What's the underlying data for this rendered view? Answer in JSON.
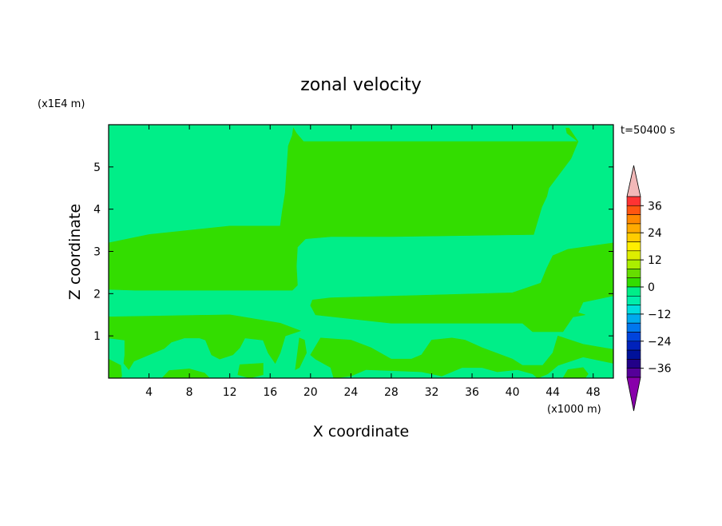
{
  "chart_data": {
    "type": "heatmap",
    "title": "zonal velocity",
    "xlabel": "X coordinate",
    "ylabel": "Z coordinate",
    "x_unit": "(x1000 m)",
    "y_unit": "(x1E4 m)",
    "time_label": "t=50400 s",
    "xlim": [
      0,
      50
    ],
    "ylim": [
      0,
      6
    ],
    "x_ticks": [
      4,
      8,
      12,
      16,
      20,
      24,
      28,
      32,
      36,
      40,
      44,
      48
    ],
    "y_ticks": [
      1,
      2,
      3,
      4,
      5
    ],
    "x_tick_labels": [
      "4",
      "8",
      "12",
      "16",
      "20",
      "24",
      "28",
      "32",
      "36",
      "40",
      "44",
      "48"
    ],
    "y_tick_labels": [
      "1",
      "2",
      "3",
      "4",
      "5"
    ],
    "regions": [
      {
        "level": "0 to 3",
        "color": "#33dd00",
        "points": [
          [
            18.3,
            5.92
          ],
          [
            18.6,
            5.8
          ],
          [
            19.3,
            5.6
          ],
          [
            46.5,
            5.6
          ],
          [
            45.8,
            5.2
          ],
          [
            43.6,
            4.5
          ],
          [
            43.4,
            4.3
          ],
          [
            42.9,
            4.05
          ],
          [
            42.1,
            3.4
          ],
          [
            28,
            3.35
          ],
          [
            22,
            3.35
          ],
          [
            19.5,
            3.3
          ],
          [
            18.7,
            3.1
          ],
          [
            18.6,
            2.65
          ],
          [
            18.7,
            2.2
          ],
          [
            18.2,
            2.08
          ],
          [
            2.6,
            2.08
          ],
          [
            0,
            2.1
          ],
          [
            0,
            3.2
          ],
          [
            4,
            3.4
          ],
          [
            12,
            3.6
          ],
          [
            17,
            3.6
          ],
          [
            17.2,
            3.95
          ],
          [
            17.5,
            4.4
          ],
          [
            17.6,
            4.8
          ],
          [
            17.8,
            5.5
          ],
          [
            18.2,
            5.75
          ]
        ]
      },
      {
        "level": "0 to 3",
        "color": "#33dd00",
        "points": [
          [
            45.3,
            5.92
          ],
          [
            45.4,
            5.8
          ],
          [
            46.5,
            5.6
          ],
          [
            45.6,
            5.92
          ]
        ]
      },
      {
        "level": "0 to 3",
        "color": "#33dd00",
        "points": [
          [
            20,
            1.72
          ],
          [
            20.2,
            1.85
          ],
          [
            22,
            1.9
          ],
          [
            40,
            2.02
          ],
          [
            42.8,
            2.25
          ],
          [
            43.4,
            2.6
          ],
          [
            44,
            2.9
          ],
          [
            45.5,
            3.05
          ],
          [
            50,
            3.2
          ],
          [
            50,
            1.95
          ],
          [
            47,
            1.8
          ],
          [
            46.5,
            1.55
          ],
          [
            47.2,
            1.5
          ],
          [
            46,
            1.45
          ],
          [
            45,
            1.1
          ],
          [
            42,
            1.1
          ],
          [
            41,
            1.3
          ],
          [
            28,
            1.3
          ],
          [
            20.5,
            1.5
          ]
        ]
      },
      {
        "level": "0 to 3",
        "color": "#33dd00",
        "points": [
          [
            0,
            1.45
          ],
          [
            12,
            1.5
          ],
          [
            17,
            1.3
          ],
          [
            19,
            1.12
          ],
          [
            17.5,
            1.0
          ],
          [
            17,
            0.6
          ],
          [
            16.5,
            0.35
          ],
          [
            15.8,
            0.6
          ],
          [
            15.3,
            0.9
          ],
          [
            13.5,
            0.95
          ],
          [
            13,
            0.72
          ],
          [
            12.3,
            0.55
          ],
          [
            11,
            0.45
          ],
          [
            10.2,
            0.55
          ],
          [
            9.6,
            0.9
          ],
          [
            9,
            0.95
          ],
          [
            7.5,
            0.95
          ],
          [
            6.2,
            0.85
          ],
          [
            5.5,
            0.7
          ],
          [
            4,
            0.55
          ],
          [
            2.5,
            0.4
          ],
          [
            2,
            0.2
          ],
          [
            1.5,
            0.35
          ],
          [
            1.6,
            0.55
          ],
          [
            1.6,
            0.9
          ],
          [
            0,
            0.95
          ]
        ]
      },
      {
        "level": "0 to 3",
        "color": "#33dd00",
        "points": [
          [
            18.5,
            0.2
          ],
          [
            18.9,
            0.95
          ],
          [
            19.4,
            0.9
          ],
          [
            19.6,
            0.6
          ],
          [
            18.9,
            0.25
          ]
        ]
      },
      {
        "level": "0 to 3",
        "color": "#33dd00",
        "points": [
          [
            20,
            0.55
          ],
          [
            21,
            0.95
          ],
          [
            24,
            0.9
          ],
          [
            26,
            0.72
          ],
          [
            28,
            0.45
          ],
          [
            30,
            0.45
          ],
          [
            31,
            0.55
          ],
          [
            32,
            0.9
          ],
          [
            34,
            0.95
          ],
          [
            35.3,
            0.9
          ],
          [
            37,
            0.72
          ],
          [
            40,
            0.45
          ],
          [
            41,
            0.3
          ],
          [
            43,
            0.3
          ],
          [
            44,
            0.6
          ],
          [
            44.5,
            1.0
          ],
          [
            47,
            0.8
          ],
          [
            50,
            0.68
          ],
          [
            50,
            0.35
          ],
          [
            47,
            0.5
          ],
          [
            44.5,
            0.3
          ],
          [
            43.5,
            0.1
          ],
          [
            42.5,
            0
          ],
          [
            42,
            0.1
          ],
          [
            40.5,
            0.2
          ],
          [
            38.5,
            0.15
          ],
          [
            37,
            0.25
          ],
          [
            35,
            0.25
          ],
          [
            33,
            0.05
          ],
          [
            31,
            0.15
          ],
          [
            25.5,
            0.2
          ],
          [
            24,
            0.05
          ],
          [
            22.3,
            0
          ],
          [
            22,
            0.25
          ],
          [
            20.5,
            0.45
          ]
        ]
      },
      {
        "level": "0 to 3",
        "color": "#33dd00",
        "points": [
          [
            12.8,
            0.08
          ],
          [
            13,
            0.32
          ],
          [
            15.3,
            0.35
          ],
          [
            15.3,
            0.08
          ],
          [
            14,
            0
          ]
        ]
      },
      {
        "level": "0 to 3",
        "color": "#33dd00",
        "points": [
          [
            5.3,
            0
          ],
          [
            6,
            0.18
          ],
          [
            8,
            0.22
          ],
          [
            9.5,
            0.12
          ],
          [
            10,
            0
          ]
        ]
      },
      {
        "level": "0 to 3",
        "color": "#33dd00",
        "points": [
          [
            0,
            0
          ],
          [
            0,
            0.45
          ],
          [
            1.2,
            0.3
          ],
          [
            1.3,
            0.05
          ],
          [
            1.2,
            0
          ]
        ]
      },
      {
        "level": "0 to 3",
        "color": "#33dd00",
        "points": [
          [
            45,
            0
          ],
          [
            45.5,
            0.2
          ],
          [
            47,
            0.25
          ],
          [
            47.5,
            0.1
          ],
          [
            47.2,
            0
          ]
        ]
      }
    ],
    "colorbar": {
      "label": "",
      "tick_labels": [
        "36",
        "24",
        "12",
        "0",
        "-12",
        "-24",
        "-36"
      ],
      "colors": [
        "#f2b8b8",
        "#ff3333",
        "#ff5511",
        "#ff8800",
        "#ffaa00",
        "#ffcc00",
        "#ffee00",
        "#ddee00",
        "#aaee00",
        "#66dd00",
        "#33dd00",
        "#00ee88",
        "#00eeaa",
        "#00dddd",
        "#00aaee",
        "#0077ee",
        "#0044dd",
        "#0022bb",
        "#001199",
        "#220088",
        "#550099",
        "#8800aa"
      ],
      "background_level_color": "#00ee88"
    }
  }
}
